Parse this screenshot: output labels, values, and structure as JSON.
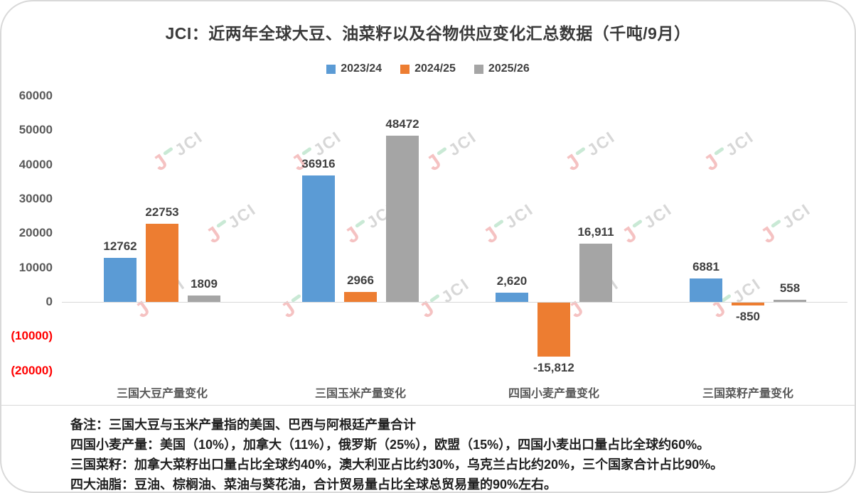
{
  "title": "JCI：近两年全球大豆、油菜籽以及谷物供应变化汇总数据（千吨/9月）",
  "legend": [
    {
      "label": "2023/24",
      "color": "#5B9BD5"
    },
    {
      "label": "2024/25",
      "color": "#ED7D31"
    },
    {
      "label": "2025/26",
      "color": "#A5A5A5"
    }
  ],
  "chart_data": {
    "type": "bar",
    "categories": [
      "三国大豆产量变化",
      "三国玉米产量变化",
      "四国小麦产量变化",
      "三国菜籽产量变化"
    ],
    "series": [
      {
        "name": "2023/24",
        "color": "#5B9BD5",
        "values": [
          12762,
          36916,
          2620,
          6881
        ],
        "labels": [
          "12762",
          "36916",
          "2,620",
          "6881"
        ]
      },
      {
        "name": "2024/25",
        "color": "#ED7D31",
        "values": [
          22753,
          2966,
          -15812,
          -850
        ],
        "labels": [
          "22753",
          "2966",
          "-15,812",
          "-850"
        ]
      },
      {
        "name": "2025/26",
        "color": "#A5A5A5",
        "values": [
          1809,
          48472,
          16911,
          558
        ],
        "labels": [
          "1809",
          "48472",
          "16,911",
          "558"
        ]
      }
    ],
    "title": "JCI：近两年全球大豆、油菜籽以及谷物供应变化汇总数据（千吨/9月）",
    "xlabel": "",
    "ylabel": "",
    "ylim": [
      -20000,
      60000
    ],
    "ytick_step": 10000,
    "yticks": [
      {
        "value": 60000,
        "label": "60000",
        "color": "#595959"
      },
      {
        "value": 50000,
        "label": "50000",
        "color": "#595959"
      },
      {
        "value": 40000,
        "label": "40000",
        "color": "#595959"
      },
      {
        "value": 30000,
        "label": "30000",
        "color": "#595959"
      },
      {
        "value": 20000,
        "label": "20000",
        "color": "#595959"
      },
      {
        "value": 10000,
        "label": "10000",
        "color": "#595959"
      },
      {
        "value": 0,
        "label": "0",
        "color": "#595959"
      },
      {
        "value": -10000,
        "label": "(10000)",
        "color": "#FF0000"
      },
      {
        "value": -20000,
        "label": "(20000)",
        "color": "#FF0000"
      }
    ],
    "negative_tick_color": "#FF0000",
    "grid": false,
    "legend_position": "top",
    "zero_line_color": "#D9D9D9"
  },
  "watermark": {
    "j": "J",
    "jci": "JCI"
  },
  "notes": [
    "备注：三国大豆与玉米产量指的美国、巴西与阿根廷产量合计",
    "四国小麦产量：美国（10%），加拿大（11%），俄罗斯（25%），欧盟（15%），四国小麦出口量占比全球约60%。",
    "三国菜籽：加拿大菜籽出口量占比全球约40%，澳大利亚占比约30%，乌克兰占比约20%，三个国家合计占比90%。",
    "四大油脂：豆油、棕榈油、菜油与葵花油，合计贸易量占比全球总贸易量的90%左右。"
  ]
}
